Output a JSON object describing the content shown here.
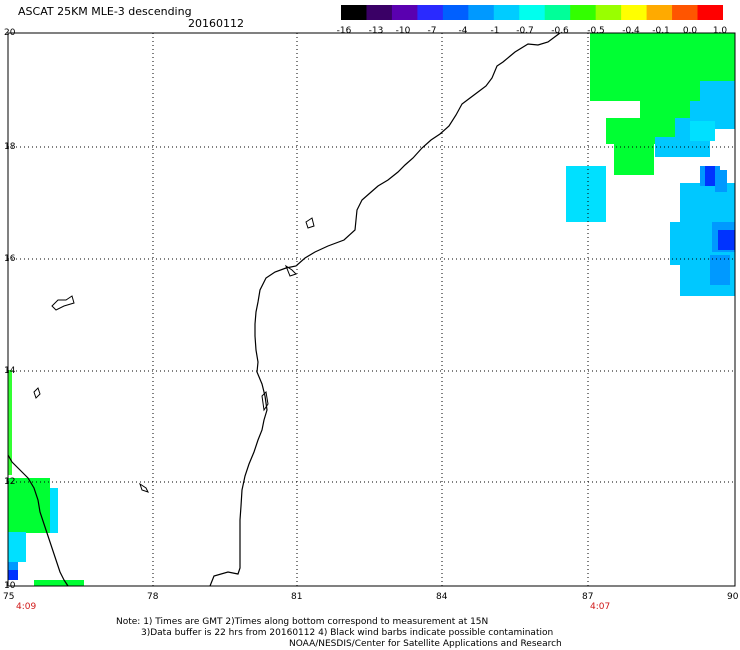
{
  "header": {
    "title": "ASCAT 25KM MLE-3 descending",
    "date": "20160112"
  },
  "colorbar": {
    "labels": [
      "-16",
      "-13",
      "-10",
      "-7",
      "-4",
      "-1",
      "-0.7",
      "-0.6",
      "-0.5",
      "-0.4",
      "-0.1",
      "0.0",
      "1.0"
    ],
    "colors": [
      "#000000",
      "#3a0066",
      "#5a00b0",
      "#2a2aff",
      "#0060ff",
      "#0099ff",
      "#00ccff",
      "#00ffee",
      "#00ff99",
      "#33ff00",
      "#99ff00",
      "#ffff00",
      "#ffaa00",
      "#ff5500",
      "#ff0000"
    ]
  },
  "map": {
    "lat_labels": [
      "20",
      "18",
      "16",
      "14",
      "12",
      "10"
    ],
    "lon_labels": [
      "75",
      "78",
      "81",
      "84",
      "87",
      "90"
    ],
    "lat_range": [
      10,
      20
    ],
    "lon_range": [
      75,
      90
    ],
    "grid": "dotted",
    "pass_times": [
      "4:09",
      "4:07"
    ],
    "swath_colors": {
      "green": "#00ff33",
      "cyan": "#00e0ff",
      "light_blue": "#00c8ff",
      "mid_blue": "#0099ff",
      "blue": "#0033ff",
      "lime": "#33ff33"
    }
  },
  "footer": {
    "line1": "Note: 1) Times are GMT 2)Times along bottom correspond to measurement at 15N",
    "line2": "3)Data buffer is 22 hrs from 20160112 4) Black wind barbs indicate possible contamination",
    "line3": "NOAA/NESDIS/Center for Satellite Applications and Research"
  }
}
